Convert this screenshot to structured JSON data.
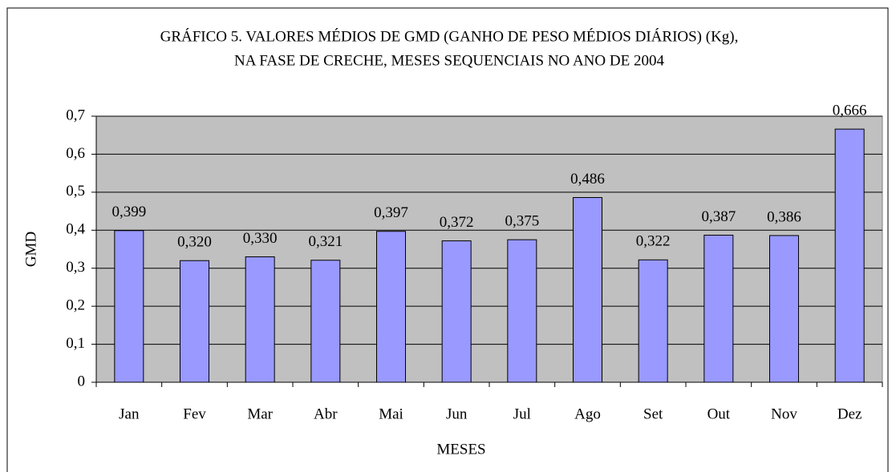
{
  "chart_data": {
    "type": "bar",
    "title": [
      "GRÁFICO 5. VALORES MÉDIOS DE GMD (GANHO DE PESO MÉDIOS DIÁRIOS) (Kg),",
      "NA FASE DE CRECHE, MESES SEQUENCIAIS NO ANO DE 2004"
    ],
    "x_label": "MESES",
    "y_label": "GMD",
    "categories": [
      "Jan",
      "Fev",
      "Mar",
      "Abr",
      "Mai",
      "Jun",
      "Jul",
      "Ago",
      "Set",
      "Out",
      "Nov",
      "Dez"
    ],
    "values": [
      0.399,
      0.32,
      0.33,
      0.321,
      0.397,
      0.372,
      0.375,
      0.486,
      0.322,
      0.387,
      0.386,
      0.666
    ],
    "value_labels": [
      "0,399",
      "0,320",
      "0,330",
      "0,321",
      "0,397",
      "0,372",
      "0,375",
      "0,486",
      "0,322",
      "0,387",
      "0,386",
      "0,666"
    ],
    "color": "#9999ff",
    "plot_background": "#c0c0c0",
    "ylim": [
      0,
      0.7
    ],
    "yticks": [
      0,
      {
        "value": 0.1,
        "label": "0,1"
      },
      {
        "value": 0.2,
        "label": "0,2"
      },
      {
        "value": 0.3,
        "label": "0,3"
      },
      {
        "value": 0.4,
        "label": "0,4"
      },
      {
        "value": 0.5,
        "label": "0,5"
      },
      {
        "value": 0.6,
        "label": "0,6"
      },
      {
        "value": 0.7,
        "label": "0,7"
      }
    ],
    "grid": true
  }
}
